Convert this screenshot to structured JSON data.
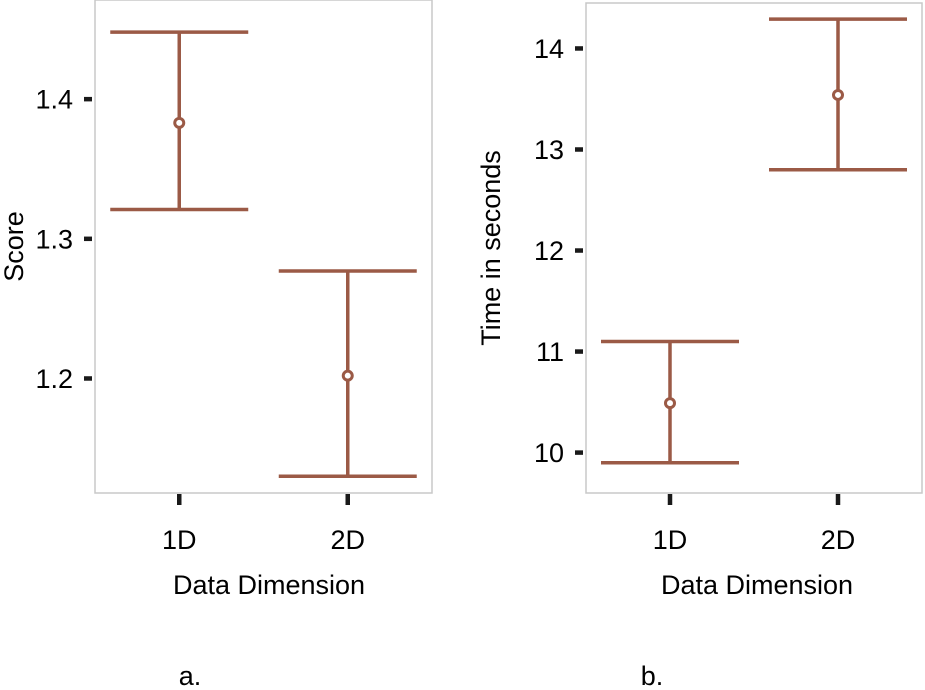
{
  "colors": {
    "series": "#9b5a46",
    "panel_border": "#c8c8c8",
    "tick": "#1a1a1a"
  },
  "chart_data": [
    {
      "type": "errorbar",
      "caption": "a.",
      "xlabel": "Data Dimension",
      "ylabel": "Score",
      "categories": [
        "1D",
        "2D"
      ],
      "yticks": [
        1.2,
        1.3,
        1.4
      ],
      "ytick_labels": [
        "1.2",
        "1.3",
        "1.4"
      ],
      "ylim": [
        1.118,
        1.471
      ],
      "grid": false,
      "points": [
        {
          "category": "1D",
          "mean": 1.383,
          "lower": 1.321,
          "upper": 1.448
        },
        {
          "category": "2D",
          "mean": 1.202,
          "lower": 1.13,
          "upper": 1.277
        }
      ]
    },
    {
      "type": "errorbar",
      "caption": "b.",
      "xlabel": "Data Dimension",
      "ylabel": "Time in seconds",
      "categories": [
        "1D",
        "2D"
      ],
      "yticks": [
        10,
        11,
        12,
        13,
        14
      ],
      "ytick_labels": [
        "10",
        "11",
        "12",
        "13",
        "14"
      ],
      "ylim": [
        9.6,
        14.45
      ],
      "grid": false,
      "points": [
        {
          "category": "1D",
          "mean": 10.49,
          "lower": 9.9,
          "upper": 11.1
        },
        {
          "category": "2D",
          "mean": 13.54,
          "lower": 12.8,
          "upper": 14.29
        }
      ]
    }
  ]
}
